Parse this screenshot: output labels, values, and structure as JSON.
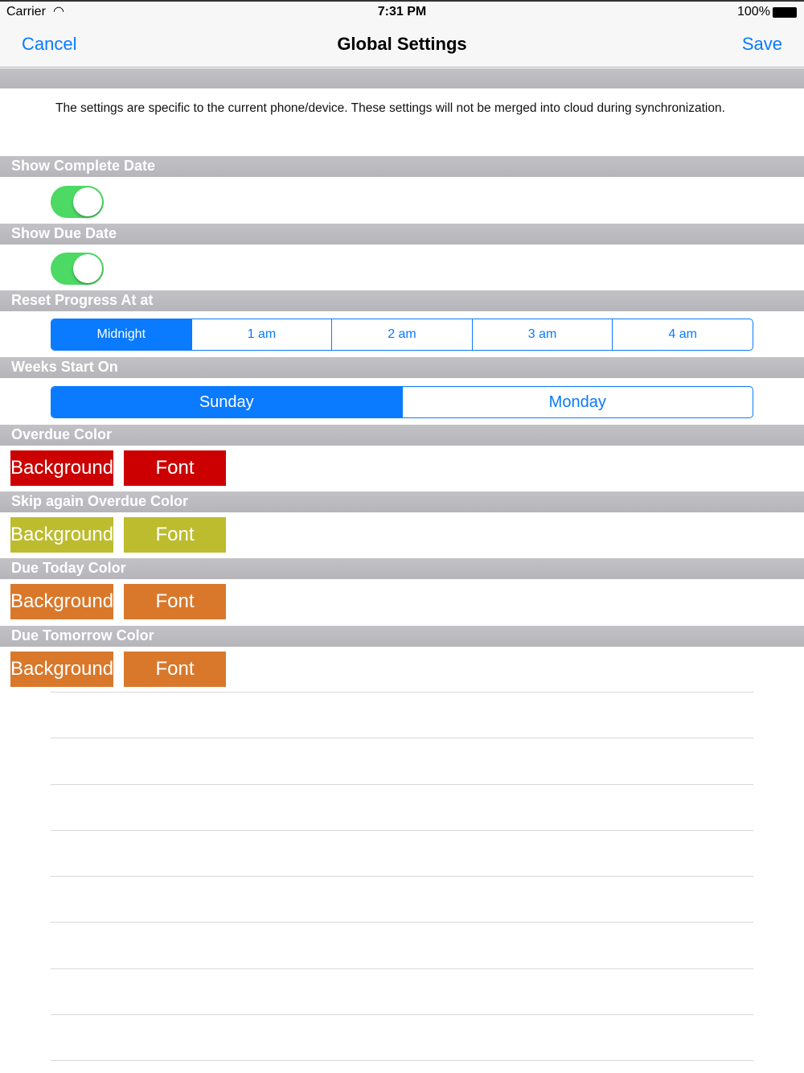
{
  "status": {
    "carrier": "Carrier",
    "time": "7:31 PM",
    "battery": "100%",
    "wifi_icon": "wifi-icon",
    "battery_icon": "battery-icon"
  },
  "nav": {
    "cancel": "Cancel",
    "title": "Global Settings",
    "save": "Save"
  },
  "notice": "The settings are specific to the current phone/device. These settings will not be merged into cloud during synchronization.",
  "sections": {
    "show_complete_date": {
      "label": "Show Complete Date",
      "on": true
    },
    "show_due_date": {
      "label": "Show Due Date",
      "on": true
    },
    "reset_progress": {
      "label": "Reset Progress At at",
      "options": [
        "Midnight",
        "1 am",
        "2 am",
        "3 am",
        "4 am"
      ],
      "selected": "Midnight"
    },
    "weeks_start": {
      "label": "Weeks Start On",
      "options": [
        "Sunday",
        "Monday"
      ],
      "selected": "Sunday"
    },
    "colors": [
      {
        "label": "Overdue Color",
        "background": "Background",
        "font": "Font",
        "color": "#cc0000"
      },
      {
        "label": "Skip again Overdue Color",
        "background": "Background",
        "font": "Font",
        "color": "#bcbc2e"
      },
      {
        "label": "Due Today Color",
        "background": "Background",
        "font": "Font",
        "color": "#d9782b"
      },
      {
        "label": "Due Tomorrow Color",
        "background": "Background",
        "font": "Font",
        "color": "#d9782b"
      }
    ]
  },
  "accent": "#0a7aff"
}
